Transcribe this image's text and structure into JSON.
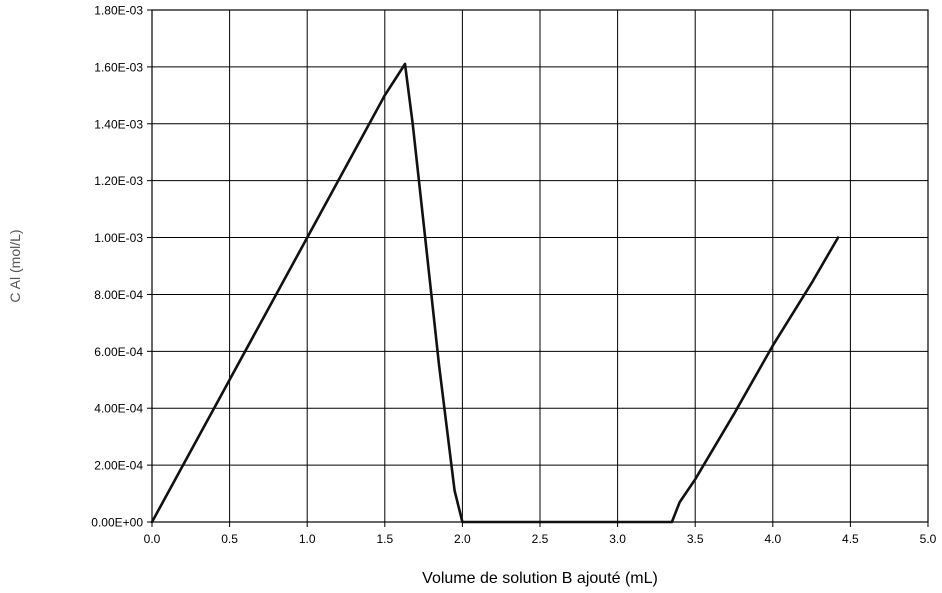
{
  "chart_data": {
    "type": "line",
    "title": "",
    "xlabel": "Volume de solution B ajouté (mL)",
    "ylabel": "C Al (mol/L)",
    "xlim": [
      0,
      5
    ],
    "ylim": [
      0,
      0.0018
    ],
    "grid": true,
    "legend": "none",
    "x_ticks": [
      0,
      0.5,
      1,
      1.5,
      2,
      2.5,
      3,
      3.5,
      4,
      4.5,
      5
    ],
    "x_tick_labels": [
      "0.0",
      "0.5",
      "1.0",
      "1.5",
      "2.0",
      "2.5",
      "3.0",
      "3.5",
      "4.0",
      "4.5",
      "5.0"
    ],
    "y_ticks": [
      0,
      0.0002,
      0.0004,
      0.0006,
      0.0008,
      0.001,
      0.0012,
      0.0014,
      0.0016,
      0.0018
    ],
    "y_tick_labels": [
      "0.00E+00",
      "2.00E-04",
      "4.00E-04",
      "6.00E-04",
      "8.00E-04",
      "1.00E-03",
      "1.20E-03",
      "1.40E-03",
      "1.60E-03",
      "1.80E-03"
    ],
    "series": [
      {
        "color": "#111111",
        "x": [
          0,
          0.5,
          1.0,
          1.5,
          1.63,
          1.68,
          1.75,
          1.85,
          1.95,
          2.0,
          2.5,
          3.0,
          3.35,
          3.4,
          3.5,
          3.75,
          4.0,
          4.25,
          4.42
        ],
        "y": [
          0,
          0.0005,
          0.001,
          0.0015,
          0.00161,
          0.0014,
          0.00105,
          0.00055,
          0.00011,
          0,
          0,
          0,
          0,
          7e-05,
          0.00015,
          0.00038,
          0.00062,
          0.00084,
          0.001
        ]
      }
    ]
  }
}
